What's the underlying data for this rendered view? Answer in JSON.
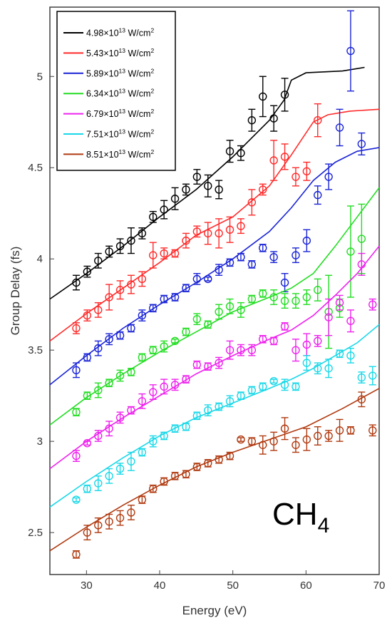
{
  "chart_data": {
    "type": "scatter",
    "title": "",
    "xlabel": "Energy (eV)",
    "ylabel": "Group Delay (fs)",
    "xlim": [
      25,
      70
    ],
    "ylim": [
      2.27,
      5.38
    ],
    "xticks": [
      30,
      40,
      50,
      60,
      70
    ],
    "yticks": [
      2.5,
      3,
      3.5,
      4,
      4.5,
      5
    ],
    "xtick_labels": [
      "30",
      "40",
      "50",
      "60",
      "70"
    ],
    "ytick_labels": [
      "2.5",
      "3",
      "3.5",
      "4",
      "4.5",
      "5"
    ],
    "grid": false,
    "legend_position": "top-left",
    "annotation": {
      "base": "CH",
      "sub": "4"
    },
    "series": [
      {
        "name": "4.98×10",
        "exp": "13",
        "unit": " W/cm",
        "unit_sup": "2",
        "color": "#000000",
        "x": [
          28.6,
          30.1,
          31.6,
          33.1,
          34.6,
          36.1,
          37.6,
          39.1,
          40.6,
          42.1,
          43.6,
          45.1,
          46.6,
          48.1,
          49.6,
          51.1,
          52.6,
          54.1,
          55.6,
          57.1
        ],
        "y": [
          3.87,
          3.93,
          3.99,
          4.04,
          4.07,
          4.1,
          4.14,
          4.23,
          4.27,
          4.33,
          4.38,
          4.45,
          4.4,
          4.38,
          4.59,
          4.58,
          4.76,
          4.89,
          4.77,
          4.9
        ],
        "err": [
          0.04,
          0.03,
          0.04,
          0.03,
          0.04,
          0.07,
          0.03,
          0.03,
          0.05,
          0.06,
          0.03,
          0.04,
          0.06,
          0.05,
          0.06,
          0.04,
          0.06,
          0.11,
          0.07,
          0.09
        ],
        "fit_x": [
          25,
          30,
          35,
          40,
          45,
          50,
          55,
          57,
          58,
          60,
          65,
          68
        ],
        "fit_y": [
          3.78,
          3.92,
          4.07,
          4.23,
          4.38,
          4.56,
          4.76,
          4.87,
          4.98,
          5.02,
          5.03,
          5.05
        ]
      },
      {
        "name": "5.43×10",
        "exp": "13",
        "unit": " W/cm",
        "unit_sup": "2",
        "color": "#ff2a2a",
        "x": [
          28.6,
          30.1,
          31.6,
          33.1,
          34.6,
          36.1,
          37.6,
          39.1,
          40.6,
          42.1,
          43.6,
          45.1,
          46.6,
          48.1,
          49.6,
          51.1,
          52.6,
          54.1,
          55.6,
          57.1,
          58.6,
          60.1,
          61.6
        ],
        "y": [
          3.62,
          3.69,
          3.72,
          3.79,
          3.83,
          3.86,
          3.89,
          4.02,
          4.03,
          4.03,
          4.1,
          4.15,
          4.14,
          4.14,
          4.16,
          4.18,
          4.31,
          4.38,
          4.54,
          4.56,
          4.45,
          4.48,
          4.76
        ],
        "err": [
          0.03,
          0.03,
          0.04,
          0.07,
          0.05,
          0.05,
          0.04,
          0.07,
          0.03,
          0.02,
          0.04,
          0.03,
          0.06,
          0.08,
          0.07,
          0.04,
          0.07,
          0.03,
          0.11,
          0.07,
          0.05,
          0.05,
          0.09
        ],
        "fit_x": [
          25,
          30,
          35,
          40,
          45,
          50,
          55,
          58,
          61,
          63,
          66,
          70
        ],
        "fit_y": [
          3.55,
          3.7,
          3.84,
          3.98,
          4.13,
          4.23,
          4.4,
          4.57,
          4.75,
          4.79,
          4.81,
          4.82
        ]
      },
      {
        "name": "5.89×10",
        "exp": "13",
        "unit": " W/cm",
        "unit_sup": "2",
        "color": "#1a24d6",
        "x": [
          28.6,
          30.1,
          31.6,
          33.1,
          34.6,
          36.1,
          37.6,
          39.1,
          40.6,
          42.1,
          43.6,
          45.1,
          46.6,
          48.1,
          49.6,
          51.1,
          52.6,
          54.1,
          55.6,
          57.1,
          58.6,
          60.1,
          61.6,
          63.1,
          64.6,
          66.1,
          67.6
        ],
        "y": [
          3.39,
          3.46,
          3.51,
          3.56,
          3.58,
          3.62,
          3.69,
          3.73,
          3.78,
          3.79,
          3.84,
          3.89,
          3.89,
          3.94,
          3.98,
          4.01,
          3.97,
          4.06,
          4.01,
          3.87,
          4.02,
          4.1,
          4.35,
          4.45,
          4.72,
          5.14,
          4.63
        ],
        "err": [
          0.04,
          0.02,
          0.04,
          0.03,
          0.02,
          0.02,
          0.03,
          0.02,
          0.02,
          0.02,
          0.02,
          0.03,
          0.01,
          0.03,
          0.02,
          0.02,
          0.02,
          0.02,
          0.03,
          0.05,
          0.04,
          0.06,
          0.05,
          0.07,
          0.1,
          0.22,
          0.06
        ],
        "fit_x": [
          25,
          30,
          35,
          40,
          45,
          50,
          55,
          58,
          61,
          64,
          67,
          70
        ],
        "fit_y": [
          3.31,
          3.47,
          3.62,
          3.75,
          3.87,
          4.0,
          4.15,
          4.28,
          4.43,
          4.53,
          4.59,
          4.61
        ]
      },
      {
        "name": "6.34×10",
        "exp": "13",
        "unit": " W/cm",
        "unit_sup": "2",
        "color": "#22dd22",
        "x": [
          28.6,
          30.1,
          31.6,
          33.1,
          34.6,
          36.1,
          37.6,
          39.1,
          40.6,
          42.1,
          43.6,
          45.1,
          46.6,
          48.1,
          49.6,
          51.1,
          52.6,
          54.1,
          55.6,
          57.1,
          58.6,
          60.1,
          61.6,
          63.1,
          64.6,
          66.1,
          67.6
        ],
        "y": [
          3.16,
          3.25,
          3.28,
          3.32,
          3.36,
          3.38,
          3.46,
          3.5,
          3.52,
          3.55,
          3.6,
          3.67,
          3.64,
          3.71,
          3.74,
          3.72,
          3.78,
          3.81,
          3.79,
          3.77,
          3.77,
          3.79,
          3.83,
          3.71,
          3.73,
          4.04,
          4.11
        ],
        "err": [
          0.02,
          0.02,
          0.04,
          0.02,
          0.03,
          0.02,
          0.02,
          0.02,
          0.03,
          0.01,
          0.02,
          0.03,
          0.02,
          0.04,
          0.04,
          0.04,
          0.02,
          0.02,
          0.04,
          0.04,
          0.04,
          0.04,
          0.06,
          0.2,
          0.05,
          0.25,
          0.19
        ],
        "fit_x": [
          25,
          30,
          35,
          40,
          45,
          50,
          55,
          58,
          61,
          64,
          67,
          70
        ],
        "fit_y": [
          3.09,
          3.24,
          3.37,
          3.49,
          3.6,
          3.71,
          3.79,
          3.84,
          3.92,
          4.07,
          4.23,
          4.39
        ]
      },
      {
        "name": "6.79×10",
        "exp": "13",
        "unit": " W/cm",
        "unit_sup": "2",
        "color": "#ee22ee",
        "x": [
          28.6,
          30.1,
          31.6,
          33.1,
          34.6,
          36.1,
          37.6,
          39.1,
          40.6,
          42.1,
          43.6,
          45.1,
          46.6,
          48.1,
          49.6,
          51.1,
          52.6,
          54.1,
          55.6,
          57.1,
          58.6,
          60.1,
          61.6,
          63.1,
          64.6,
          66.1,
          67.6,
          69.1
        ],
        "y": [
          2.92,
          2.99,
          3.03,
          3.07,
          3.13,
          3.17,
          3.22,
          3.27,
          3.3,
          3.31,
          3.34,
          3.42,
          3.41,
          3.43,
          3.5,
          3.5,
          3.5,
          3.56,
          3.55,
          3.63,
          3.5,
          3.53,
          3.55,
          3.68,
          3.76,
          3.66,
          3.97,
          3.75
        ],
        "err": [
          0.03,
          0.01,
          0.03,
          0.04,
          0.03,
          0.02,
          0.04,
          0.04,
          0.04,
          0.03,
          0.02,
          0.02,
          0.02,
          0.03,
          0.05,
          0.03,
          0.03,
          0.02,
          0.02,
          0.02,
          0.06,
          0.06,
          0.03,
          0.1,
          0.04,
          0.06,
          0.06,
          0.03
        ],
        "fit_x": [
          25,
          30,
          35,
          40,
          45,
          50,
          55,
          58,
          61,
          64,
          67,
          70
        ],
        "fit_y": [
          2.85,
          3.0,
          3.13,
          3.25,
          3.37,
          3.47,
          3.56,
          3.61,
          3.69,
          3.8,
          3.92,
          4.07
        ]
      },
      {
        "name": "7.51×10",
        "exp": "13",
        "unit": " W/cm",
        "unit_sup": "2",
        "color": "#1ad8e8",
        "x": [
          28.6,
          30.1,
          31.6,
          33.1,
          34.6,
          36.1,
          37.6,
          39.1,
          40.6,
          42.1,
          43.6,
          45.1,
          46.6,
          48.1,
          49.6,
          51.1,
          52.6,
          54.1,
          55.6,
          57.1,
          58.6,
          60.1,
          61.6,
          63.1,
          64.6,
          66.1,
          67.6,
          69.1
        ],
        "y": [
          2.68,
          2.74,
          2.77,
          2.81,
          2.85,
          2.89,
          2.94,
          3.0,
          3.03,
          3.07,
          3.08,
          3.14,
          3.17,
          3.19,
          3.22,
          3.25,
          3.28,
          3.3,
          3.33,
          3.31,
          3.3,
          3.43,
          3.4,
          3.4,
          3.48,
          3.47,
          3.35,
          3.36
        ],
        "err": [
          0.01,
          0.02,
          0.04,
          0.04,
          0.03,
          0.05,
          0.02,
          0.03,
          0.02,
          0.02,
          0.02,
          0.02,
          0.03,
          0.02,
          0.03,
          0.02,
          0.02,
          0.02,
          0.01,
          0.03,
          0.02,
          0.04,
          0.03,
          0.05,
          0.02,
          0.04,
          0.03,
          0.05
        ],
        "fit_x": [
          25,
          30,
          35,
          40,
          45,
          50,
          55,
          58,
          61,
          64,
          67,
          70
        ],
        "fit_y": [
          2.64,
          2.78,
          2.91,
          3.03,
          3.13,
          3.21,
          3.29,
          3.34,
          3.4,
          3.47,
          3.54,
          3.64
        ]
      },
      {
        "name": "8.51×10",
        "exp": "13",
        "unit": " W/cm",
        "unit_sup": "2",
        "color": "#b03a10",
        "x": [
          28.6,
          30.1,
          31.6,
          33.1,
          34.6,
          36.1,
          37.6,
          39.1,
          40.6,
          42.1,
          43.6,
          45.1,
          46.6,
          48.1,
          49.6,
          51.1,
          52.6,
          54.1,
          55.6,
          57.1,
          58.6,
          60.1,
          61.6,
          63.1,
          64.6,
          66.1,
          67.6,
          69.1
        ],
        "y": [
          2.38,
          2.5,
          2.54,
          2.56,
          2.58,
          2.61,
          2.68,
          2.74,
          2.78,
          2.81,
          2.82,
          2.86,
          2.88,
          2.9,
          2.92,
          3.01,
          3.0,
          2.98,
          3.0,
          3.07,
          2.98,
          3.01,
          3.03,
          3.03,
          3.06,
          3.06,
          3.23,
          3.06
        ],
        "err": [
          0.02,
          0.04,
          0.04,
          0.04,
          0.04,
          0.04,
          0.02,
          0.02,
          0.02,
          0.02,
          0.02,
          0.02,
          0.02,
          0.02,
          0.02,
          0.01,
          0.02,
          0.05,
          0.05,
          0.06,
          0.04,
          0.06,
          0.05,
          0.03,
          0.06,
          0.02,
          0.04,
          0.03
        ],
        "fit_x": [
          25,
          30,
          35,
          40,
          45,
          50,
          55,
          60,
          65,
          70
        ],
        "fit_y": [
          2.4,
          2.53,
          2.65,
          2.76,
          2.86,
          2.94,
          3.01,
          3.08,
          3.18,
          3.29
        ]
      }
    ]
  }
}
